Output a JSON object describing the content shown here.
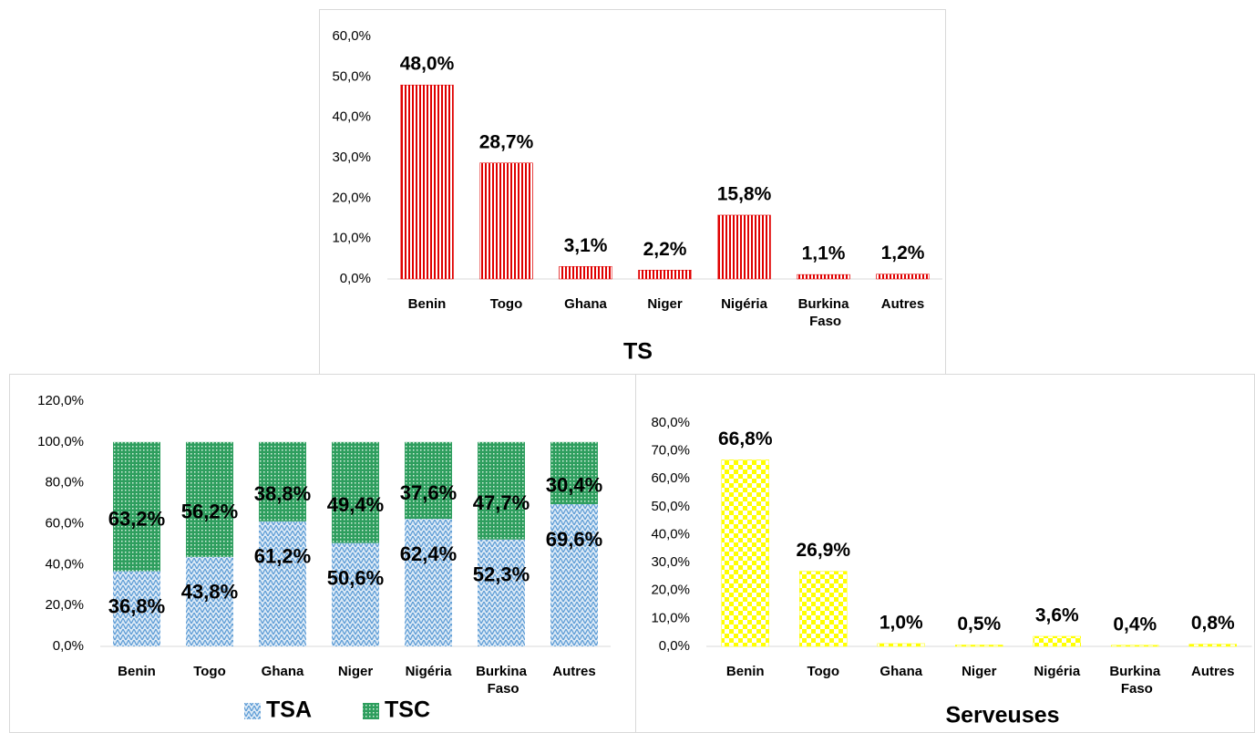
{
  "chart_data": [
    {
      "type": "bar",
      "title": "TS",
      "categories": [
        "Benin",
        "Togo",
        "Ghana",
        "Niger",
        "Nigéria",
        "Burkina Faso",
        "Autres"
      ],
      "values": [
        48.0,
        28.7,
        3.1,
        2.2,
        15.8,
        1.1,
        1.2
      ],
      "value_labels": [
        "48,0%",
        "28,7%",
        "3,1%",
        "2,2%",
        "15,8%",
        "1,1%",
        "1,2%"
      ],
      "color": "#e00000",
      "ylim": [
        0,
        60
      ],
      "yticks": [
        {
          "value": 0,
          "label": "0,0%"
        },
        {
          "value": 10,
          "label": "10,0%"
        },
        {
          "value": 20,
          "label": "20,0%"
        },
        {
          "value": 30,
          "label": "30,0%"
        },
        {
          "value": 40,
          "label": "40,0%"
        },
        {
          "value": 50,
          "label": "50,0%"
        },
        {
          "value": 60,
          "label": "60,0%"
        }
      ]
    },
    {
      "type": "stacked_bar",
      "categories": [
        "Benin",
        "Togo",
        "Ghana",
        "Niger",
        "Nigéria",
        "Burkina Faso",
        "Autres"
      ],
      "series": [
        {
          "name": "TSA",
          "color": "#5b9bd5",
          "values": [
            36.8,
            43.8,
            61.2,
            50.6,
            62.4,
            52.3,
            69.6
          ],
          "value_labels": [
            "36,8%",
            "43,8%",
            "61,2%",
            "50,6%",
            "62,4%",
            "52,3%",
            "69,6%"
          ]
        },
        {
          "name": "TSC",
          "color": "#2e9e5e",
          "values": [
            63.2,
            56.2,
            38.8,
            49.4,
            37.6,
            47.7,
            30.4
          ],
          "value_labels": [
            "63,2%",
            "56,2%",
            "38,8%",
            "49,4%",
            "37,6%",
            "47,7%",
            "30,4%"
          ]
        }
      ],
      "ylim": [
        0,
        120
      ],
      "yticks": [
        {
          "value": 0,
          "label": "0,0%"
        },
        {
          "value": 20,
          "label": "20,0%"
        },
        {
          "value": 40,
          "label": "40,0%"
        },
        {
          "value": 60,
          "label": "60,0%"
        },
        {
          "value": 80,
          "label": "80,0%"
        },
        {
          "value": 100,
          "label": "100,0%"
        },
        {
          "value": 120,
          "label": "120,0%"
        }
      ],
      "legend": "bottom"
    },
    {
      "type": "bar",
      "title": "Serveuses",
      "categories": [
        "Benin",
        "Togo",
        "Ghana",
        "Niger",
        "Nigéria",
        "Burkina Faso",
        "Autres"
      ],
      "values": [
        66.8,
        26.9,
        1.0,
        0.5,
        3.6,
        0.4,
        0.8
      ],
      "value_labels": [
        "66,8%",
        "26,9%",
        "1,0%",
        "0,5%",
        "3,6%",
        "0,4%",
        "0,8%"
      ],
      "color": "#ffff00",
      "ylim": [
        0,
        80
      ],
      "yticks": [
        {
          "value": 0,
          "label": "0,0%"
        },
        {
          "value": 10,
          "label": "10,0%"
        },
        {
          "value": 20,
          "label": "20,0%"
        },
        {
          "value": 30,
          "label": "30,0%"
        },
        {
          "value": 40,
          "label": "40,0%"
        },
        {
          "value": 50,
          "label": "50,0%"
        },
        {
          "value": 60,
          "label": "60,0%"
        },
        {
          "value": 70,
          "label": "70,0%"
        },
        {
          "value": 80,
          "label": "80,0%"
        }
      ]
    }
  ]
}
